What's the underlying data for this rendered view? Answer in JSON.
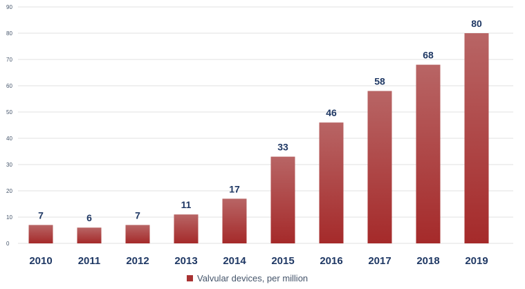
{
  "chart_data": {
    "type": "bar",
    "categories": [
      "2010",
      "2011",
      "2012",
      "2013",
      "2014",
      "2015",
      "2016",
      "2017",
      "2018",
      "2019"
    ],
    "series": [
      {
        "name": "Valvular devices, per million",
        "values": [
          7,
          6,
          7,
          11,
          17,
          33,
          46,
          58,
          68,
          80
        ],
        "color": "#a83232"
      }
    ],
    "data_labels": [
      "7",
      "6",
      "7",
      "11",
      "17",
      "33",
      "46",
      "58",
      "68",
      "80"
    ],
    "y_ticks": [
      "0",
      "10",
      "20",
      "30",
      "40",
      "50",
      "60",
      "70",
      "80",
      "90"
    ],
    "ylim": [
      0,
      90
    ],
    "grid": true,
    "legend_position": "bottom",
    "colors": {
      "bar_top": "#b86565",
      "bar_bottom": "#a52a2a",
      "grid": "#e2e2e2",
      "category_text": "#1f3864",
      "tick_text": "#44546a"
    }
  }
}
